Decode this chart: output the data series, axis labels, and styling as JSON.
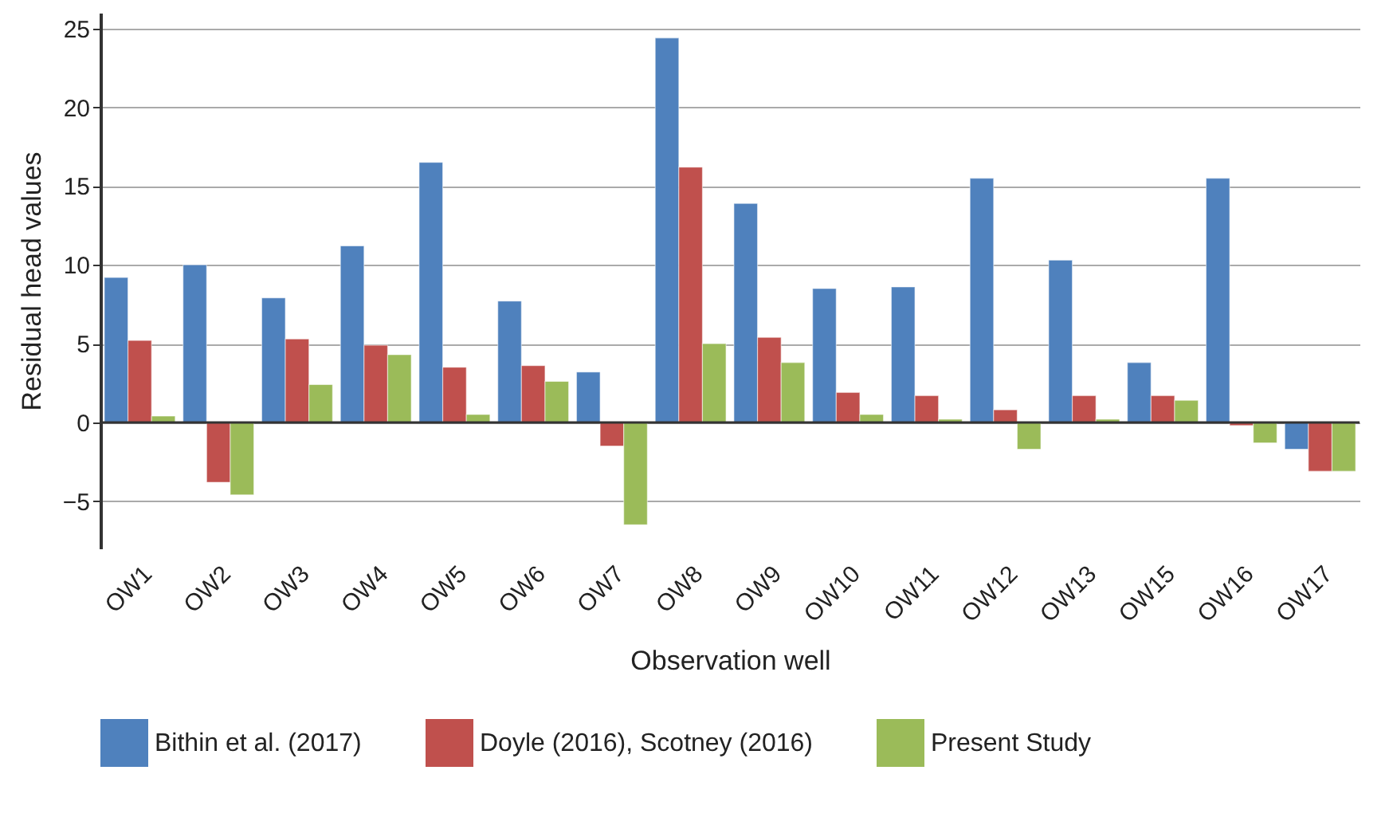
{
  "chart_data": {
    "type": "bar",
    "xlabel": "Observation well",
    "ylabel": "Residual head values",
    "categories": [
      "OW1",
      "OW2",
      "OW3",
      "OW4",
      "OW5",
      "OW6",
      "OW7",
      "OW8",
      "OW9",
      "OW10",
      "OW11",
      "OW12",
      "OW13",
      "OW15",
      "OW16",
      "OW17"
    ],
    "series": [
      {
        "name": "Bithin et al. (2017)",
        "color": "#4f81bd",
        "values": [
          9.2,
          10.0,
          7.9,
          11.2,
          16.5,
          7.7,
          3.2,
          24.4,
          13.9,
          8.5,
          8.6,
          15.5,
          10.3,
          3.8,
          15.5,
          -1.7
        ]
      },
      {
        "name": "Doyle (2016), Scotney (2016)",
        "color": "#c0504d",
        "values": [
          5.2,
          -3.8,
          5.3,
          4.9,
          3.5,
          3.6,
          -1.5,
          16.2,
          5.4,
          1.9,
          1.7,
          0.8,
          1.7,
          1.7,
          -0.2,
          -3.1
        ]
      },
      {
        "name": "Present Study",
        "color": "#9bbb59",
        "values": [
          0.4,
          -4.6,
          2.4,
          4.3,
          0.5,
          2.6,
          -6.5,
          5.0,
          3.8,
          0.5,
          0.2,
          -1.7,
          0.2,
          1.4,
          -1.3,
          -3.1
        ]
      }
    ],
    "ylim": [
      -8,
      26
    ],
    "yticks": [
      -5,
      0,
      5,
      10,
      15,
      20,
      25
    ],
    "grid": "y",
    "legend": "bottom"
  }
}
